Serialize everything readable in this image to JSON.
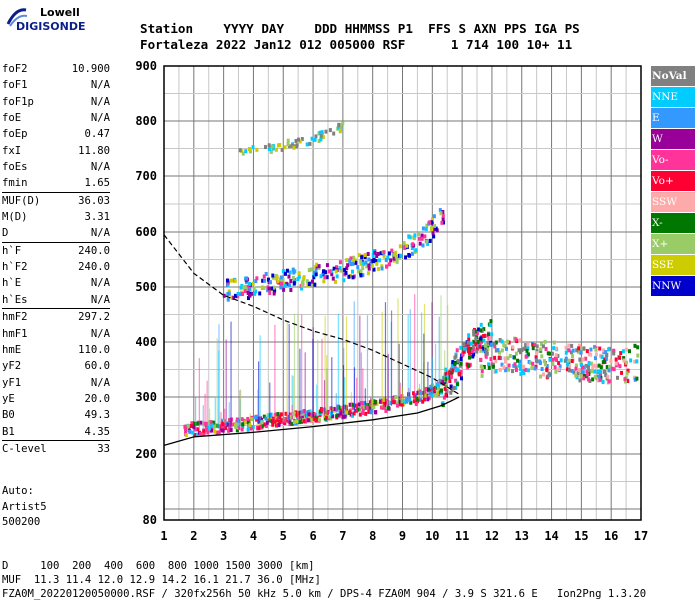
{
  "logo": {
    "line1": "Lowell",
    "line2": "DIGISONDE"
  },
  "header": {
    "labels": "Station    YYYY DAY    DDD HHMMSS P1  FFS S AXN PPS IGA PS",
    "values": "Fortaleza 2022 Jan12 012 005000 RSF      1 714 100 10+ 11"
  },
  "params_groups": [
    [
      {
        "name": "foF2",
        "value": "10.900"
      },
      {
        "name": "foF1",
        "value": "N/A"
      },
      {
        "name": "foF1p",
        "value": "N/A"
      },
      {
        "name": "foE",
        "value": "N/A"
      },
      {
        "name": "foEp",
        "value": "0.47"
      },
      {
        "name": "fxI",
        "value": "11.80"
      },
      {
        "name": "foEs",
        "value": "N/A"
      },
      {
        "name": "fmin",
        "value": "1.65"
      }
    ],
    [
      {
        "name": "MUF(D)",
        "value": "36.03"
      },
      {
        "name": "M(D)",
        "value": "3.31"
      },
      {
        "name": "D",
        "value": "N/A"
      }
    ],
    [
      {
        "name": "h`F",
        "value": "240.0"
      },
      {
        "name": "h`F2",
        "value": "240.0"
      },
      {
        "name": "h`E",
        "value": "N/A"
      },
      {
        "name": "h`Es",
        "value": "N/A"
      }
    ],
    [
      {
        "name": "hmF2",
        "value": "297.2"
      },
      {
        "name": "hmF1",
        "value": "N/A"
      },
      {
        "name": "hmE",
        "value": "110.0"
      },
      {
        "name": "yF2",
        "value": "60.0"
      },
      {
        "name": "yF1",
        "value": "N/A"
      },
      {
        "name": "yE",
        "value": "20.0"
      },
      {
        "name": "B0",
        "value": "49.3"
      },
      {
        "name": "B1",
        "value": "4.35"
      }
    ],
    [
      {
        "name": "C-level",
        "value": "33"
      }
    ]
  ],
  "auto": {
    "line1": "Auto:",
    "line2": "Artist5",
    "line3": "500200"
  },
  "footer": {
    "d_line": "D     100  200  400  600  800 1000 1500 3000 [km]",
    "muf_line": "MUF  11.3 11.4 12.0 12.9 14.2 16.1 21.7 36.0 [MHz]",
    "file_line": "FZA0M_20220120050000.RSF / 320fx256h 50 kHz 5.0 km / DPS-4 FZA0M 904 / 3.9 S 321.6 E   Ion2Png 1.3.20"
  },
  "legend": [
    {
      "label": "NoVal",
      "color": "#808080",
      "bold": true
    },
    {
      "label": "NNE",
      "color": "#00ccff"
    },
    {
      "label": "E",
      "color": "#3399ff"
    },
    {
      "label": "W",
      "color": "#990099"
    },
    {
      "label": "Vo-",
      "color": "#ff3399"
    },
    {
      "label": "Vo+",
      "color": "#ff0033"
    },
    {
      "label": "SSW",
      "color": "#ffaaaa"
    },
    {
      "label": "X-",
      "color": "#007700"
    },
    {
      "label": "X+",
      "color": "#99cc66"
    },
    {
      "label": "SSE",
      "color": "#cccc00"
    },
    {
      "label": "NNW",
      "color": "#0000cc"
    }
  ],
  "chart_data": {
    "type": "scatter",
    "x_ticks": [
      1,
      2,
      3,
      4,
      5,
      6,
      7,
      8,
      9,
      10,
      11,
      12,
      13,
      14,
      15,
      16,
      17
    ],
    "y_ticks": [
      80,
      200,
      300,
      400,
      500,
      600,
      700,
      800,
      900
    ],
    "xlim": [
      1,
      17
    ],
    "y_scale": "nonlinear (ionogram virtual height)",
    "grid": true,
    "echo_traces": [
      {
        "name": "F2 O-trace (Vo+/Vo-)",
        "x": [
          1.7,
          2.5,
          3.5,
          4.5,
          5.5,
          6.5,
          7.5,
          8.5,
          9.5,
          10.2,
          10.6,
          10.9
        ],
        "y": [
          240,
          243,
          248,
          255,
          262,
          268,
          275,
          283,
          295,
          312,
          340,
          380
        ]
      },
      {
        "name": "F2 X-trace",
        "x": [
          10.3,
          10.6,
          10.9,
          11.1,
          11.4,
          11.7,
          12.0
        ],
        "y": [
          300,
          320,
          345,
          365,
          385,
          395,
          400
        ]
      },
      {
        "name": "multi-hop 2F",
        "x": [
          3.0,
          4.0,
          5.0,
          6.0,
          7.0,
          8.0,
          9.0,
          9.8,
          10.4
        ],
        "y": [
          490,
          495,
          505,
          515,
          525,
          540,
          560,
          590,
          630
        ]
      },
      {
        "name": "3-hop",
        "x": [
          3.5,
          4.5,
          5.5,
          6.5,
          7.0
        ],
        "y": [
          740,
          750,
          760,
          775,
          790
        ]
      },
      {
        "name": "spread F",
        "x": [
          11.5,
          12.0,
          13.0,
          14.0,
          15.0,
          16.0,
          16.9
        ],
        "y": [
          360,
          370,
          365,
          360,
          355,
          350,
          355
        ]
      }
    ],
    "profile_curve": {
      "x": [
        1.0,
        2.0,
        4.0,
        6.0,
        8.0,
        9.5,
        10.3,
        10.7,
        10.9
      ],
      "y": [
        215,
        230,
        238,
        248,
        260,
        272,
        285,
        295,
        300
      ]
    },
    "muf_curve": {
      "x": [
        1.0,
        1.5,
        2.0,
        3.0,
        4.0,
        5.0,
        6.0,
        7.0,
        8.0,
        9.0,
        10.0,
        10.9
      ],
      "y": [
        595,
        560,
        525,
        485,
        465,
        440,
        420,
        405,
        385,
        360,
        335,
        305
      ]
    }
  }
}
